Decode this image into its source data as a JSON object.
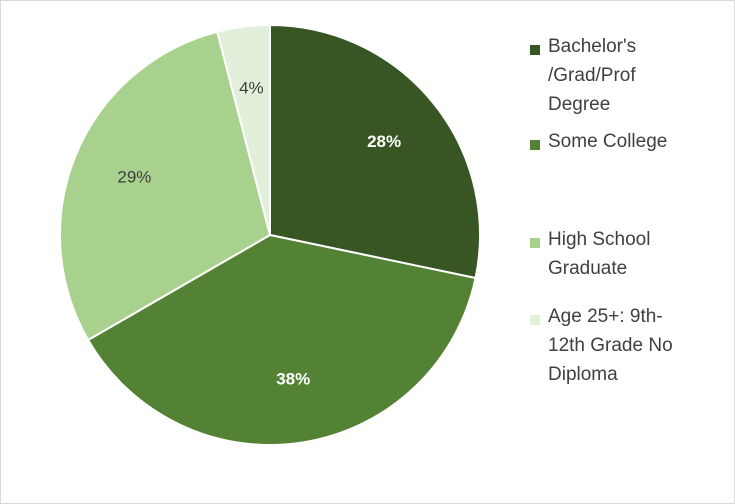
{
  "chart_data": {
    "type": "pie",
    "categories": [
      "Bachelor's /Grad/Prof Degree",
      "Some College",
      "High School Graduate",
      "Age 25+: 9th-12th Grade No Diploma"
    ],
    "values": [
      28,
      38,
      29,
      4
    ],
    "value_labels": [
      "28%",
      "38%",
      "29%",
      "4%"
    ],
    "colors": [
      "#375623",
      "#548235",
      "#a9d18e",
      "#e2efda"
    ],
    "legend": "right"
  }
}
